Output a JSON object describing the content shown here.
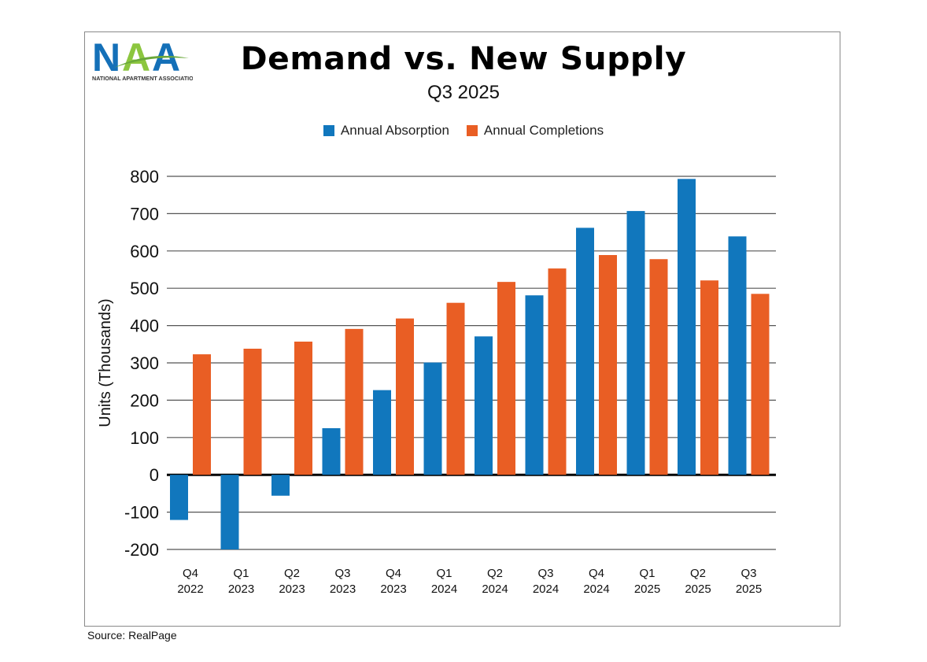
{
  "logo": {
    "text": "NAA",
    "tagline": "NATIONAL APARTMENT ASSOCIATION"
  },
  "source": "Source: RealPage",
  "colors": {
    "absorption": "#1177bd",
    "completions": "#e95e24"
  },
  "chart_data": {
    "type": "bar",
    "title": "Demand vs. New Supply",
    "subtitle": "Q3 2025",
    "ylabel": "Units (Thousands)",
    "xlabel": "",
    "ylim": [
      -200,
      800
    ],
    "yticks": [
      800,
      700,
      600,
      500,
      400,
      300,
      200,
      100,
      0,
      -100,
      -200
    ],
    "grid": true,
    "legend_position": "top",
    "categories": [
      [
        "Q4",
        "2022"
      ],
      [
        "Q1",
        "2023"
      ],
      [
        "Q2",
        "2023"
      ],
      [
        "Q3",
        "2023"
      ],
      [
        "Q4",
        "2023"
      ],
      [
        "Q1",
        "2024"
      ],
      [
        "Q2",
        "2024"
      ],
      [
        "Q3",
        "2024"
      ],
      [
        "Q4",
        "2024"
      ],
      [
        "Q1",
        "2025"
      ],
      [
        "Q2",
        "2025"
      ],
      [
        "Q3",
        "2025"
      ]
    ],
    "series": [
      {
        "name": "Annual Absorption",
        "values": [
          -121,
          -200,
          -56,
          125,
          227,
          301,
          371,
          481,
          662,
          707,
          793,
          639
        ]
      },
      {
        "name": "Annual Completions",
        "values": [
          323,
          338,
          357,
          391,
          419,
          461,
          517,
          553,
          589,
          578,
          521,
          485
        ]
      }
    ]
  }
}
